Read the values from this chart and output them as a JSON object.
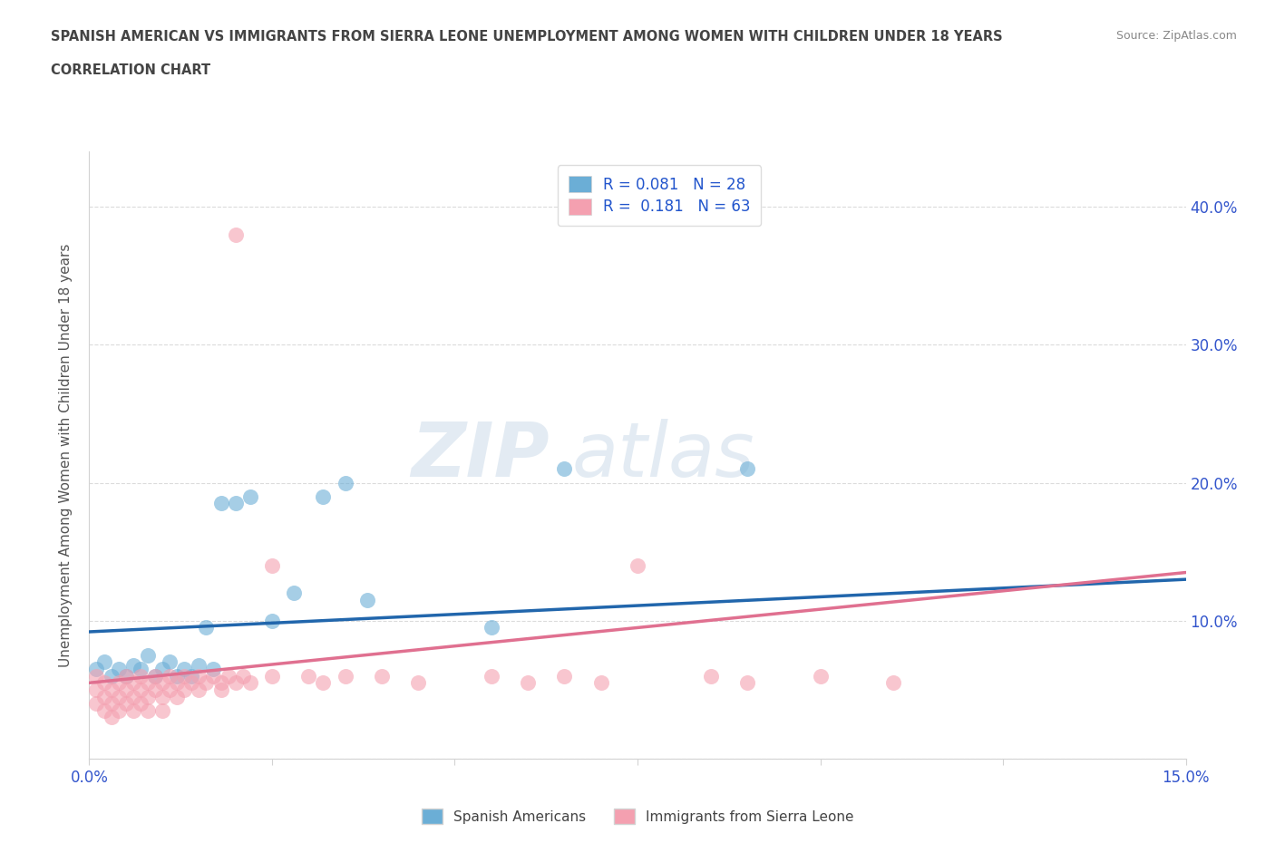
{
  "title_line1": "SPANISH AMERICAN VS IMMIGRANTS FROM SIERRA LEONE UNEMPLOYMENT AMONG WOMEN WITH CHILDREN UNDER 18 YEARS",
  "title_line2": "CORRELATION CHART",
  "source": "Source: ZipAtlas.com",
  "ylabel": "Unemployment Among Women with Children Under 18 years",
  "xlim": [
    0.0,
    0.15
  ],
  "ylim": [
    0.0,
    0.44
  ],
  "xticks": [
    0.0,
    0.025,
    0.05,
    0.075,
    0.1,
    0.125,
    0.15
  ],
  "xtick_labels": [
    "0.0%",
    "",
    "",
    "",
    "",
    "",
    "15.0%"
  ],
  "yticks": [
    0.0,
    0.1,
    0.2,
    0.3,
    0.4
  ],
  "ytick_labels": [
    "",
    "10.0%",
    "20.0%",
    "30.0%",
    "40.0%"
  ],
  "color_blue": "#6baed6",
  "color_pink": "#f4a0b0",
  "blue_scatter_x": [
    0.001,
    0.002,
    0.003,
    0.004,
    0.005,
    0.006,
    0.007,
    0.008,
    0.009,
    0.01,
    0.011,
    0.012,
    0.013,
    0.014,
    0.015,
    0.016,
    0.017,
    0.018,
    0.02,
    0.022,
    0.025,
    0.028,
    0.032,
    0.035,
    0.038,
    0.055,
    0.065,
    0.09
  ],
  "blue_scatter_y": [
    0.065,
    0.07,
    0.06,
    0.065,
    0.06,
    0.068,
    0.065,
    0.075,
    0.06,
    0.065,
    0.07,
    0.06,
    0.065,
    0.06,
    0.068,
    0.095,
    0.065,
    0.185,
    0.185,
    0.19,
    0.1,
    0.12,
    0.19,
    0.2,
    0.115,
    0.095,
    0.21,
    0.21
  ],
  "pink_scatter_x": [
    0.001,
    0.001,
    0.001,
    0.002,
    0.002,
    0.002,
    0.003,
    0.003,
    0.003,
    0.004,
    0.004,
    0.004,
    0.005,
    0.005,
    0.005,
    0.006,
    0.006,
    0.006,
    0.007,
    0.007,
    0.007,
    0.008,
    0.008,
    0.008,
    0.009,
    0.009,
    0.01,
    0.01,
    0.01,
    0.011,
    0.011,
    0.012,
    0.012,
    0.013,
    0.013,
    0.014,
    0.015,
    0.015,
    0.016,
    0.017,
    0.018,
    0.018,
    0.019,
    0.02,
    0.021,
    0.022,
    0.025,
    0.025,
    0.03,
    0.032,
    0.035,
    0.04,
    0.045,
    0.055,
    0.06,
    0.065,
    0.07,
    0.075,
    0.085,
    0.09,
    0.1,
    0.11,
    0.02
  ],
  "pink_scatter_y": [
    0.06,
    0.05,
    0.04,
    0.055,
    0.045,
    0.035,
    0.05,
    0.04,
    0.03,
    0.055,
    0.045,
    0.035,
    0.06,
    0.05,
    0.04,
    0.055,
    0.045,
    0.035,
    0.06,
    0.05,
    0.04,
    0.055,
    0.045,
    0.035,
    0.06,
    0.05,
    0.055,
    0.045,
    0.035,
    0.06,
    0.05,
    0.055,
    0.045,
    0.06,
    0.05,
    0.055,
    0.06,
    0.05,
    0.055,
    0.06,
    0.055,
    0.05,
    0.06,
    0.055,
    0.06,
    0.055,
    0.14,
    0.06,
    0.06,
    0.055,
    0.06,
    0.06,
    0.055,
    0.06,
    0.055,
    0.06,
    0.055,
    0.14,
    0.06,
    0.055,
    0.06,
    0.055,
    0.38
  ],
  "blue_trendline_x": [
    0.0,
    0.15
  ],
  "blue_trendline_y": [
    0.092,
    0.13
  ],
  "pink_trendline_x": [
    0.0,
    0.15
  ],
  "pink_trendline_y": [
    0.055,
    0.135
  ]
}
